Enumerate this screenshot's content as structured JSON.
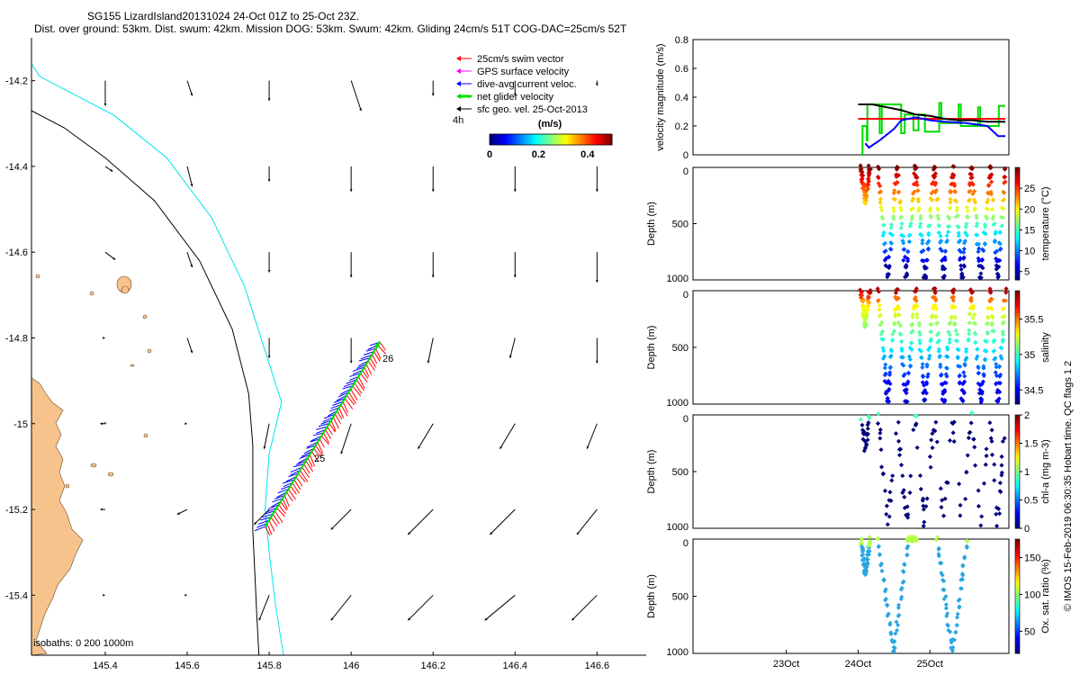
{
  "header": {
    "title": "SG155 LizardIsland20131024 24-Oct 01Z to 25-Oct 23Z.",
    "subtitle": "Dist. over ground: 53km. Dist. swum: 42km. Mission DOG: 53km. Swum: 42km. Gliding 24cm/s 51T COG-DAC=25cm/s 52T"
  },
  "colors": {
    "land": "#f7c38d",
    "coast_line": "#6a4a2a",
    "isobath_200": "#000000",
    "isobath_1000": "#00e5ee",
    "swim": "#ff0000",
    "gps": "#ff00ff",
    "dac": "#0000ff",
    "net": "#00dd00",
    "sfc": "#000000",
    "ox_dive": "#2aa6e0",
    "chl_dot": "#00007a"
  },
  "chart_data": [
    {
      "type": "scatter",
      "name": "map",
      "xlim": [
        145.22,
        146.72
      ],
      "ylim": [
        -15.54,
        -14.1
      ],
      "xticks": [
        145.4,
        145.6,
        145.8,
        146,
        146.2,
        146.4,
        146.6
      ],
      "xtick_labels": [
        "145.4",
        "145.6",
        "145.8",
        "146",
        "146.2",
        "146.4",
        "146.6"
      ],
      "yticks": [
        -14.2,
        -14.4,
        -14.6,
        -14.8,
        -15,
        -15.2,
        -15.4
      ],
      "ytick_labels": [
        "-14.2",
        "-14.4",
        "-14.6",
        "-14.8",
        "-15",
        "-15.2",
        "-15.4"
      ],
      "legend": {
        "entries": [
          "25cm/s swim vector",
          "GPS surface velocity",
          "dive-avg current veloc.",
          "net glider velocity",
          "sfc geo. vel. 25-Oct-2013"
        ],
        "time_label": "4h",
        "units_label": "(m/s)",
        "colorbar_ticks": [
          0,
          0.2,
          0.4
        ],
        "colorbar_tick_labels": [
          "0",
          "0.2",
          "0.4"
        ],
        "colorbar_range": [
          0,
          0.5
        ]
      },
      "isobaths_label": "isobaths: 0   200  1000m",
      "track_labels": [
        "26",
        "25"
      ],
      "track": {
        "lon": [
          145.79,
          146.07
        ],
        "lat": [
          -15.24,
          -14.81
        ]
      },
      "isobath_200": {
        "lon": [
          145.22,
          145.3,
          145.4,
          145.52,
          145.63,
          145.71,
          145.75,
          145.76,
          145.76,
          145.76,
          145.765,
          145.77,
          145.775
        ],
        "lat": [
          -14.27,
          -14.31,
          -14.38,
          -14.48,
          -14.62,
          -14.78,
          -14.93,
          -15.05,
          -15.15,
          -15.25,
          -15.35,
          -15.45,
          -15.54
        ]
      },
      "isobath_1000": {
        "lon": [
          145.22,
          145.24,
          145.3,
          145.42,
          145.55,
          145.66,
          145.74,
          145.79,
          145.83,
          145.8,
          145.79,
          145.8,
          145.815,
          145.835
        ],
        "lat": [
          -14.16,
          -14.19,
          -14.22,
          -14.28,
          -14.38,
          -14.52,
          -14.68,
          -14.83,
          -14.95,
          -15.07,
          -15.2,
          -15.3,
          -15.42,
          -15.54
        ]
      },
      "sfc_vectors": {
        "lon": [
          145.4,
          145.6,
          145.8,
          146.0,
          146.2,
          146.4,
          146.6
        ],
        "lat": [
          -14.2,
          -14.4,
          -14.6,
          -14.8,
          -15.0,
          -15.2,
          -15.4
        ],
        "u": [
          [
            0.0,
            0.02,
            0.0,
            0.04,
            0.0,
            0.0,
            0.0
          ],
          [
            0.03,
            0.02,
            0.0,
            0.0,
            0.0,
            0.0,
            0.0
          ],
          [
            0.04,
            0.02,
            0.0,
            0.0,
            0.0,
            0.0,
            0.0
          ],
          [
            0.0,
            0.02,
            0.0,
            0.0,
            -0.02,
            -0.02,
            0.0
          ],
          [
            -0.02,
            0.0,
            -0.02,
            -0.04,
            -0.06,
            -0.06,
            -0.04
          ],
          [
            -0.02,
            -0.04,
            -0.06,
            -0.08,
            -0.1,
            -0.1,
            -0.08
          ],
          [
            0.0,
            0.0,
            -0.04,
            -0.08,
            -0.1,
            -0.12,
            -0.1
          ]
        ],
        "v": [
          [
            -0.1,
            -0.06,
            -0.08,
            -0.12,
            -0.06,
            -0.06,
            -0.02
          ],
          [
            -0.02,
            -0.08,
            -0.06,
            -0.1,
            -0.1,
            -0.1,
            -0.1
          ],
          [
            -0.03,
            -0.06,
            -0.08,
            -0.1,
            -0.1,
            -0.1,
            -0.12
          ],
          [
            0.0,
            -0.06,
            -0.08,
            -0.1,
            -0.1,
            -0.08,
            -0.1
          ],
          [
            0.0,
            0.0,
            -0.1,
            -0.12,
            -0.1,
            -0.1,
            -0.1
          ],
          [
            0.0,
            -0.02,
            -0.06,
            -0.08,
            -0.1,
            -0.1,
            -0.1
          ],
          [
            0.0,
            0.0,
            -0.1,
            -0.1,
            -0.1,
            -0.1,
            -0.1
          ]
        ]
      }
    },
    {
      "type": "line",
      "name": "velocity",
      "ylabel": "velocity magnitude (m/s)",
      "ylim": [
        0,
        0.8
      ],
      "yticks": [
        0,
        0.2,
        0.4,
        0.6,
        0.8
      ],
      "ytick_labels": [
        "0",
        "0.2",
        "0.4",
        "0.6",
        "0.8"
      ],
      "xlim": [
        21.7,
        26.1
      ],
      "xticks": [
        23,
        24,
        25
      ],
      "xtick_labels": [
        "23Oct",
        "24Oct",
        "25Oct"
      ],
      "series": [
        {
          "color": "#00dd00",
          "x": [
            24.05,
            24.06,
            24.06,
            24.12,
            24.12,
            24.13,
            24.13,
            24.3,
            24.3,
            24.33,
            24.33,
            24.6,
            24.6,
            24.65,
            24.65,
            24.77,
            24.77,
            24.84,
            24.84,
            24.93,
            24.93,
            25.13,
            25.13,
            25.16,
            25.16,
            25.4,
            25.4,
            25.43,
            25.43,
            25.67,
            25.67,
            25.7,
            25.7,
            25.96,
            25.96,
            26.05
          ],
          "y": [
            0.0,
            0.0,
            0.2,
            0.2,
            0.1,
            0.1,
            0.35,
            0.35,
            0.15,
            0.15,
            0.35,
            0.35,
            0.15,
            0.15,
            0.28,
            0.28,
            0.17,
            0.17,
            0.28,
            0.28,
            0.16,
            0.16,
            0.36,
            0.36,
            0.22,
            0.22,
            0.35,
            0.35,
            0.2,
            0.2,
            0.33,
            0.33,
            0.2,
            0.2,
            0.34,
            0.34
          ]
        },
        {
          "color": "#ff0000",
          "x": [
            24.0,
            26.05
          ],
          "y": [
            0.25,
            0.25
          ]
        },
        {
          "color": "#0000ff",
          "x": [
            24.1,
            24.15,
            24.3,
            24.5,
            24.6,
            24.8,
            25.0,
            25.2,
            25.5,
            25.8,
            25.95,
            26.05
          ],
          "y": [
            0.08,
            0.05,
            0.1,
            0.18,
            0.24,
            0.26,
            0.24,
            0.23,
            0.22,
            0.2,
            0.13,
            0.13
          ]
        },
        {
          "color": "#000000",
          "x": [
            24.0,
            24.2,
            24.4,
            24.6,
            24.8,
            25.0,
            25.2,
            25.4,
            25.6,
            25.8,
            26.05
          ],
          "y": [
            0.35,
            0.35,
            0.33,
            0.31,
            0.28,
            0.27,
            0.25,
            0.24,
            0.24,
            0.23,
            0.23
          ]
        }
      ]
    },
    {
      "type": "scatter",
      "name": "temperature",
      "ylabel": "Depth (m)",
      "yticks": [
        0,
        500,
        1000
      ],
      "ytick_labels": [
        "0",
        "500",
        "1000"
      ],
      "ylim": [
        0,
        1000
      ],
      "colorbar_label": "temperature (°C)",
      "colorbar_range": [
        3,
        30
      ],
      "colorbar_ticks": [
        5,
        10,
        15,
        20,
        25
      ],
      "colorbar_tick_labels": [
        "5",
        "10",
        "15",
        "20",
        "25"
      ],
      "dives": [
        [
          24.04,
          24.16,
          320
        ],
        [
          24.28,
          24.54,
          1000
        ],
        [
          24.54,
          24.8,
          1000
        ],
        [
          24.8,
          25.06,
          1000
        ],
        [
          25.06,
          25.32,
          1000
        ],
        [
          25.32,
          25.58,
          1000
        ],
        [
          25.58,
          25.84,
          1000
        ],
        [
          25.84,
          26.05,
          1000
        ]
      ]
    },
    {
      "type": "scatter",
      "name": "salinity",
      "ylabel": "Depth (m)",
      "yticks": [
        0,
        500,
        1000
      ],
      "ytick_labels": [
        "0",
        "500",
        "1000"
      ],
      "ylim": [
        0,
        1000
      ],
      "colorbar_label": "salinity",
      "colorbar_range": [
        34.3,
        35.9
      ],
      "colorbar_ticks": [
        34.5,
        35,
        35.5
      ],
      "colorbar_tick_labels": [
        "34.5",
        "35",
        "35.5"
      ],
      "dives": [
        [
          24.04,
          24.16,
          320
        ],
        [
          24.28,
          24.54,
          1000
        ],
        [
          24.54,
          24.8,
          1000
        ],
        [
          24.8,
          25.06,
          1000
        ],
        [
          25.06,
          25.32,
          1000
        ],
        [
          25.32,
          25.58,
          1000
        ],
        [
          25.58,
          25.84,
          1000
        ],
        [
          25.84,
          26.05,
          1000
        ]
      ]
    },
    {
      "type": "scatter",
      "name": "chlorophyll",
      "ylabel": "Depth (m)",
      "yticks": [
        0,
        500,
        1000
      ],
      "ytick_labels": [
        "0",
        "500",
        "1000"
      ],
      "ylim": [
        0,
        1000
      ],
      "colorbar_label": "chl-a (mg m-3)",
      "colorbar_range": [
        0,
        2
      ],
      "colorbar_ticks": [
        0,
        0.5,
        1,
        1.5,
        2
      ],
      "colorbar_tick_labels": [
        "0",
        "0.5",
        "1",
        "1.5",
        "2"
      ],
      "dives": [
        [
          24.04,
          24.16,
          320
        ],
        [
          24.28,
          24.54,
          1000
        ],
        [
          24.54,
          24.8,
          1000
        ],
        [
          24.8,
          25.06,
          1000
        ],
        [
          25.06,
          25.32,
          1000
        ],
        [
          25.32,
          25.58,
          1000
        ],
        [
          25.58,
          25.84,
          1000
        ],
        [
          25.84,
          26.05,
          1000
        ]
      ]
    },
    {
      "type": "scatter",
      "name": "oxygen",
      "ylabel": "Depth (m)",
      "yticks": [
        0,
        500,
        1000
      ],
      "ytick_labels": [
        "0",
        "500",
        "1000"
      ],
      "ylim": [
        0,
        1000
      ],
      "colorbar_label": "Ox. sat. ratio (%)",
      "colorbar_range": [
        20,
        175
      ],
      "colorbar_ticks": [
        50,
        100,
        150
      ],
      "colorbar_tick_labels": [
        "50",
        "100",
        "150"
      ],
      "dives": [
        [
          24.04,
          24.16,
          320
        ],
        [
          24.28,
          24.7,
          1000
        ],
        [
          24.7,
          24.8,
          0
        ],
        [
          25.1,
          25.52,
          1000
        ]
      ]
    }
  ],
  "side_note": "© IMOS 15-Feb-2019 06:30:35 Hobart time. QC flags 1  2"
}
